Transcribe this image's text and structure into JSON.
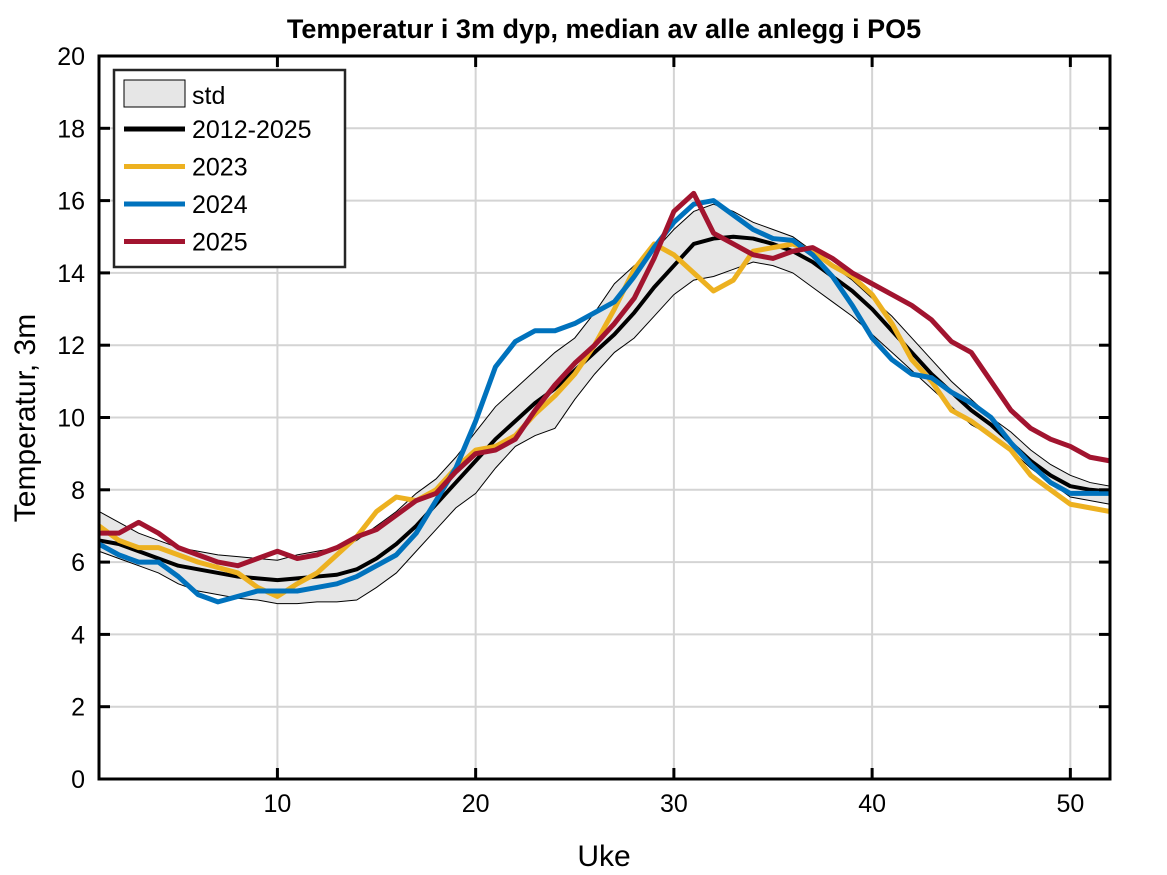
{
  "chart_data": {
    "type": "line",
    "title": "Temperatur i 3m dyp, median av alle anlegg i PO5",
    "xlabel": "Uke",
    "ylabel": "Temperatur, 3m",
    "xlim": [
      1,
      52
    ],
    "ylim": [
      0,
      20
    ],
    "xticks": [
      10,
      20,
      30,
      40,
      50
    ],
    "yticks": [
      0,
      2,
      4,
      6,
      8,
      10,
      12,
      14,
      16,
      18,
      20
    ],
    "grid": true,
    "legend_position": "top-left",
    "x": [
      1,
      2,
      3,
      4,
      5,
      6,
      7,
      8,
      9,
      10,
      11,
      12,
      13,
      14,
      15,
      16,
      17,
      18,
      19,
      20,
      21,
      22,
      23,
      24,
      25,
      26,
      27,
      28,
      29,
      30,
      31,
      32,
      33,
      34,
      35,
      36,
      37,
      38,
      39,
      40,
      41,
      42,
      43,
      44,
      45,
      46,
      47,
      48,
      49,
      50,
      51,
      52
    ],
    "band": {
      "name": "std",
      "color": "#e6e6e6",
      "upper": [
        7.4,
        7.1,
        6.8,
        6.6,
        6.4,
        6.3,
        6.2,
        6.15,
        6.1,
        6.05,
        6.2,
        6.3,
        6.4,
        6.6,
        7.0,
        7.4,
        7.9,
        8.3,
        8.9,
        9.6,
        10.3,
        10.8,
        11.3,
        11.8,
        12.2,
        12.9,
        13.7,
        14.2,
        14.6,
        15.2,
        15.7,
        15.9,
        15.7,
        15.4,
        15.2,
        15.0,
        14.6,
        14.2,
        13.8,
        13.3,
        12.8,
        12.2,
        11.6,
        11.0,
        10.5,
        10.0,
        9.6,
        9.1,
        8.7,
        8.4,
        8.2,
        8.1
      ],
      "lower": [
        6.3,
        6.1,
        5.9,
        5.7,
        5.4,
        5.2,
        5.1,
        5.0,
        4.95,
        4.85,
        4.85,
        4.9,
        4.9,
        4.95,
        5.3,
        5.7,
        6.3,
        6.9,
        7.5,
        7.9,
        8.6,
        9.2,
        9.5,
        9.7,
        10.5,
        11.2,
        11.8,
        12.2,
        12.8,
        13.4,
        13.8,
        13.9,
        14.1,
        14.3,
        14.2,
        14.0,
        13.6,
        13.2,
        12.8,
        12.3,
        11.8,
        11.3,
        10.8,
        10.3,
        9.8,
        9.5,
        9.1,
        8.6,
        8.2,
        7.8,
        7.7,
        7.6
      ]
    },
    "series": [
      {
        "name": "2012-2025",
        "color": "#000000",
        "values": [
          6.6,
          6.5,
          6.3,
          6.1,
          5.9,
          5.8,
          5.7,
          5.6,
          5.55,
          5.5,
          5.55,
          5.6,
          5.65,
          5.8,
          6.1,
          6.5,
          7.0,
          7.6,
          8.2,
          8.8,
          9.4,
          9.9,
          10.4,
          10.8,
          11.3,
          11.8,
          12.3,
          12.9,
          13.6,
          14.2,
          14.8,
          14.95,
          15.0,
          14.95,
          14.8,
          14.6,
          14.3,
          13.9,
          13.5,
          13.0,
          12.4,
          11.8,
          11.2,
          10.7,
          10.2,
          9.8,
          9.3,
          8.8,
          8.4,
          8.1,
          8.0,
          7.95
        ]
      },
      {
        "name": "2023",
        "color": "#EDB120",
        "values": [
          7.0,
          6.6,
          6.4,
          6.4,
          6.2,
          6.0,
          5.85,
          5.7,
          5.3,
          5.05,
          5.4,
          5.7,
          6.2,
          6.7,
          7.4,
          7.8,
          7.7,
          8.0,
          8.6,
          9.1,
          9.2,
          9.5,
          10.1,
          10.6,
          11.2,
          12.0,
          13.0,
          14.1,
          14.8,
          14.5,
          14.0,
          13.5,
          13.8,
          14.6,
          14.7,
          14.8,
          14.6,
          14.2,
          13.9,
          13.4,
          12.6,
          11.6,
          11.0,
          10.2,
          9.9,
          9.5,
          9.1,
          8.4,
          8.0,
          7.6,
          7.5,
          7.4
        ]
      },
      {
        "name": "2024",
        "color": "#0072BD",
        "values": [
          6.5,
          6.2,
          6.0,
          6.0,
          5.6,
          5.1,
          4.9,
          5.05,
          5.2,
          5.2,
          5.2,
          5.3,
          5.4,
          5.6,
          5.9,
          6.2,
          6.8,
          7.7,
          8.6,
          9.9,
          11.4,
          12.1,
          12.4,
          12.4,
          12.6,
          12.9,
          13.2,
          13.9,
          14.7,
          15.4,
          15.9,
          16.0,
          15.6,
          15.2,
          14.95,
          14.9,
          14.5,
          13.9,
          13.1,
          12.2,
          11.6,
          11.2,
          11.1,
          10.7,
          10.4,
          10.0,
          9.3,
          8.7,
          8.2,
          7.9,
          7.9,
          7.9
        ]
      },
      {
        "name": "2025",
        "color": "#A2142F",
        "values": [
          6.8,
          6.8,
          7.1,
          6.8,
          6.4,
          6.2,
          6.0,
          5.9,
          6.1,
          6.3,
          6.1,
          6.2,
          6.4,
          6.7,
          6.9,
          7.3,
          7.7,
          7.9,
          8.5,
          9.0,
          9.1,
          9.4,
          10.2,
          10.9,
          11.5,
          12.0,
          12.6,
          13.3,
          14.4,
          15.7,
          16.2,
          15.1,
          14.8,
          14.5,
          14.4,
          14.6,
          14.7,
          14.4,
          14.0,
          13.7,
          13.4,
          13.1,
          12.7,
          12.1,
          11.8,
          11.0,
          10.2,
          9.7,
          9.4,
          9.2,
          8.9,
          8.8
        ]
      }
    ]
  }
}
